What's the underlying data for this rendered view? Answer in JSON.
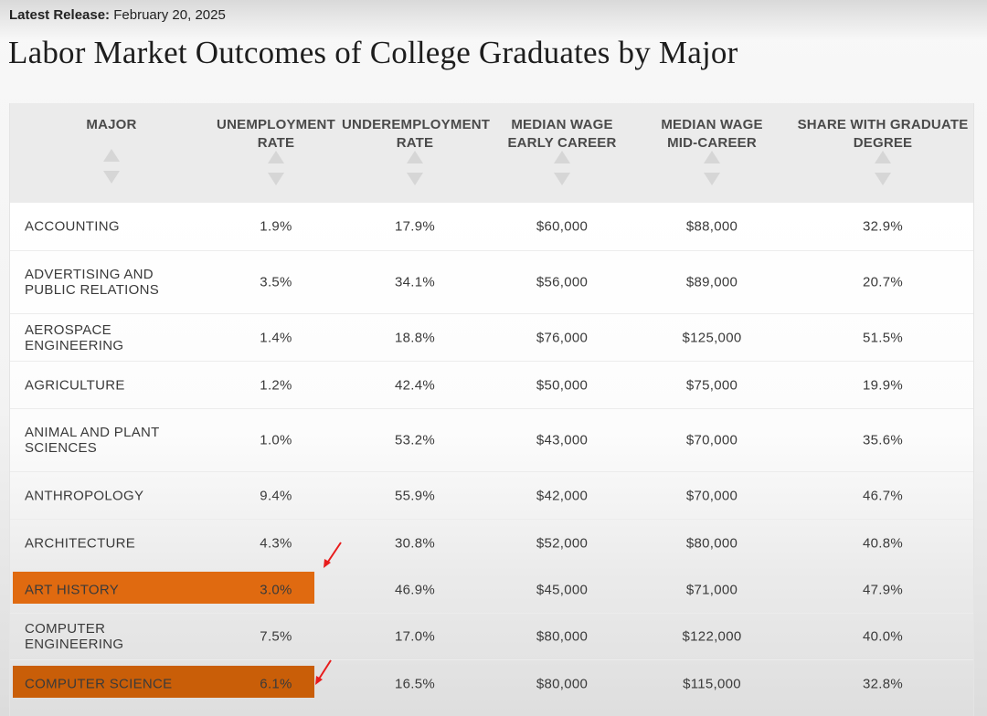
{
  "release": {
    "label": "Latest Release:",
    "date": "February 20, 2025"
  },
  "title": "Labor Market Outcomes of College Graduates by Major",
  "columns": [
    {
      "line1": "MAJOR",
      "line2": ""
    },
    {
      "line1": "UNEMPLOYMENT",
      "line2": "RATE"
    },
    {
      "line1": "UNDEREMPLOYMENT",
      "line2": "RATE"
    },
    {
      "line1": "MEDIAN WAGE",
      "line2": "EARLY CAREER"
    },
    {
      "line1": "MEDIAN WAGE",
      "line2": "MID-CAREER"
    },
    {
      "line1": "SHARE WITH GRADUATE",
      "line2": "DEGREE"
    }
  ],
  "rows": [
    {
      "major": "Accounting",
      "unemployment": "1.9%",
      "underemployment": "17.9%",
      "wage_early": "$60,000",
      "wage_mid": "$88,000",
      "grad_degree": "32.9%"
    },
    {
      "major": "Advertising and Public Relations",
      "unemployment": "3.5%",
      "underemployment": "34.1%",
      "wage_early": "$56,000",
      "wage_mid": "$89,000",
      "grad_degree": "20.7%"
    },
    {
      "major": "Aerospace Engineering",
      "unemployment": "1.4%",
      "underemployment": "18.8%",
      "wage_early": "$76,000",
      "wage_mid": "$125,000",
      "grad_degree": "51.5%"
    },
    {
      "major": "Agriculture",
      "unemployment": "1.2%",
      "underemployment": "42.4%",
      "wage_early": "$50,000",
      "wage_mid": "$75,000",
      "grad_degree": "19.9%"
    },
    {
      "major": "Animal and Plant Sciences",
      "unemployment": "1.0%",
      "underemployment": "53.2%",
      "wage_early": "$43,000",
      "wage_mid": "$70,000",
      "grad_degree": "35.6%"
    },
    {
      "major": "Anthropology",
      "unemployment": "9.4%",
      "underemployment": "55.9%",
      "wage_early": "$42,000",
      "wage_mid": "$70,000",
      "grad_degree": "46.7%"
    },
    {
      "major": "Architecture",
      "unemployment": "4.3%",
      "underemployment": "30.8%",
      "wage_early": "$52,000",
      "wage_mid": "$80,000",
      "grad_degree": "40.8%"
    },
    {
      "major": "Art History",
      "unemployment": "3.0%",
      "underemployment": "46.9%",
      "wage_early": "$45,000",
      "wage_mid": "$71,000",
      "grad_degree": "47.9%"
    },
    {
      "major": "Computer Engineering",
      "unemployment": "7.5%",
      "underemployment": "17.0%",
      "wage_early": "$80,000",
      "wage_mid": "$122,000",
      "grad_degree": "40.0%"
    },
    {
      "major": "Computer Science",
      "unemployment": "6.1%",
      "underemployment": "16.5%",
      "wage_early": "$80,000",
      "wage_mid": "$115,000",
      "grad_degree": "32.8%"
    }
  ],
  "highlight": {
    "color": "#e06a10",
    "arrow_color": "#e81c1c"
  }
}
